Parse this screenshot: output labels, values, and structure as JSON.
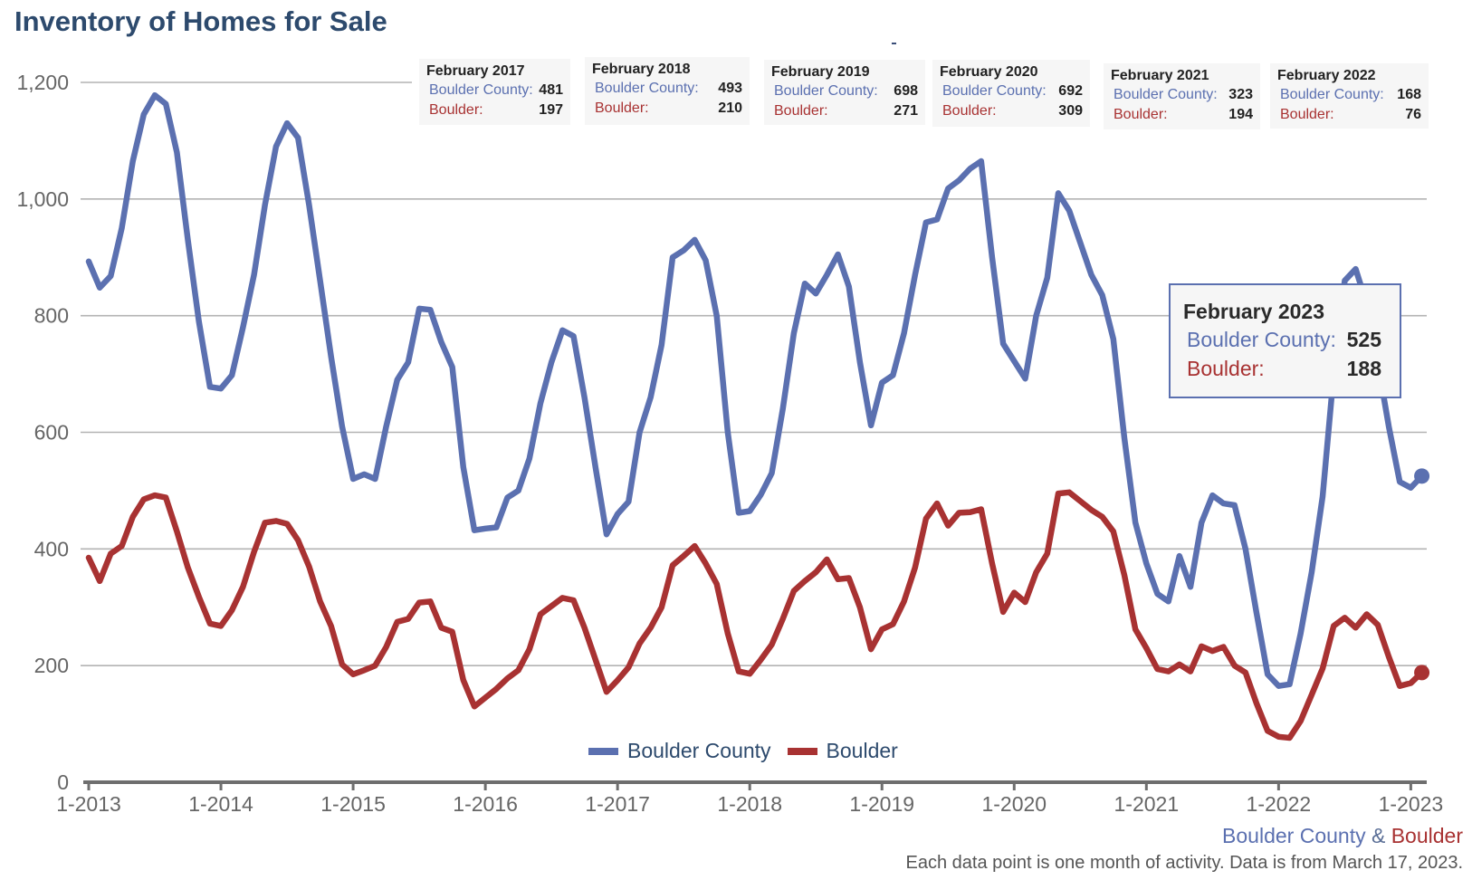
{
  "chart_data": {
    "type": "line",
    "title": "Inventory of Homes for Sale",
    "xlabel": "",
    "ylabel": "",
    "ylim": [
      0,
      1200
    ],
    "yticks": [
      "0",
      "200",
      "400",
      "600",
      "800",
      "1,000",
      "1,200"
    ],
    "ytick_values": [
      0,
      200,
      400,
      600,
      800,
      1000,
      1200
    ],
    "xticks": [
      "1-2013",
      "1-2014",
      "1-2015",
      "1-2016",
      "1-2017",
      "1-2018",
      "1-2019",
      "1-2020",
      "1-2021",
      "1-2022",
      "1-2023"
    ],
    "x_start": "2013-01",
    "x_step": "1 month",
    "grid": true,
    "legend_position": "bottom-center",
    "series": [
      {
        "name": "Boulder County",
        "color": "#5b70b0",
        "values": [
          893,
          848,
          868,
          950,
          1065,
          1145,
          1178,
          1163,
          1080,
          930,
          790,
          678,
          675,
          698,
          780,
          870,
          990,
          1090,
          1130,
          1105,
          990,
          860,
          730,
          610,
          520,
          528,
          520,
          610,
          690,
          720,
          812,
          810,
          755,
          712,
          540,
          432,
          435,
          437,
          488,
          500,
          555,
          650,
          720,
          775,
          765,
          660,
          540,
          425,
          460,
          481,
          600,
          660,
          750,
          900,
          912,
          930,
          895,
          800,
          600,
          462,
          465,
          493,
          530,
          640,
          770,
          855,
          838,
          870,
          905,
          850,
          720,
          612,
          685,
          698,
          770,
          870,
          960,
          965,
          1018,
          1032,
          1052,
          1065,
          900,
          752,
          722,
          692,
          800,
          865,
          1010,
          980,
          925,
          870,
          835,
          760,
          590,
          445,
          375,
          323,
          310,
          388,
          335,
          445,
          492,
          478,
          475,
          400,
          290,
          185,
          165,
          168,
          255,
          360,
          490,
          700,
          860,
          880,
          820,
          720,
          610,
          515,
          505,
          525
        ]
      },
      {
        "name": "Boulder",
        "color": "#a83232",
        "values": [
          385,
          345,
          392,
          405,
          455,
          485,
          492,
          488,
          430,
          368,
          318,
          272,
          268,
          295,
          335,
          395,
          445,
          448,
          443,
          415,
          370,
          310,
          268,
          202,
          185,
          192,
          200,
          232,
          275,
          280,
          308,
          310,
          265,
          258,
          175,
          130,
          145,
          160,
          178,
          192,
          228,
          288,
          302,
          316,
          312,
          265,
          210,
          155,
          175,
          197,
          238,
          265,
          300,
          372,
          388,
          405,
          375,
          340,
          255,
          190,
          186,
          210,
          236,
          280,
          328,
          345,
          360,
          382,
          348,
          350,
          300,
          228,
          262,
          271,
          310,
          368,
          452,
          478,
          440,
          462,
          463,
          468,
          375,
          292,
          325,
          309,
          360,
          392,
          495,
          497,
          482,
          467,
          455,
          430,
          355,
          262,
          230,
          194,
          190,
          202,
          190,
          233,
          225,
          232,
          200,
          188,
          135,
          88,
          78,
          76,
          105,
          150,
          195,
          268,
          282,
          265,
          288,
          270,
          215,
          165,
          170,
          188
        ]
      }
    ],
    "annotations": [
      {
        "title": "February 2017",
        "county_label": "Boulder County:",
        "county_value": "481",
        "city_label": "Boulder:",
        "city_value": "197"
      },
      {
        "title": "February 2018",
        "county_label": "Boulder County:",
        "county_value": "493",
        "city_label": "Boulder:",
        "city_value": "210"
      },
      {
        "title": "February 2019",
        "county_label": "Boulder County:",
        "county_value": "698",
        "city_label": "Boulder:",
        "city_value": "271"
      },
      {
        "title": "February 2020",
        "county_label": "Boulder County:",
        "county_value": "692",
        "city_label": "Boulder:",
        "city_value": "309"
      },
      {
        "title": "February 2021",
        "county_label": "Boulder County:",
        "county_value": "323",
        "city_label": "Boulder:",
        "city_value": "194"
      },
      {
        "title": "February 2022",
        "county_label": "Boulder County:",
        "county_value": "168",
        "city_label": "Boulder:",
        "city_value": "76"
      }
    ],
    "tooltip": {
      "title": "February 2023",
      "county_label": "Boulder County:",
      "county_value": "525",
      "city_label": "Boulder:",
      "city_value": "188"
    },
    "highlight_index": 121
  },
  "legend": {
    "items": [
      {
        "label": "Boulder County",
        "color": "#5b70b0"
      },
      {
        "label": "Boulder",
        "color": "#a83232"
      }
    ]
  },
  "source": {
    "county": "Boulder County",
    "amp": "&",
    "city": "Boulder"
  },
  "footnote": "Each data point is one month of activity. Data is from March 17, 2023."
}
